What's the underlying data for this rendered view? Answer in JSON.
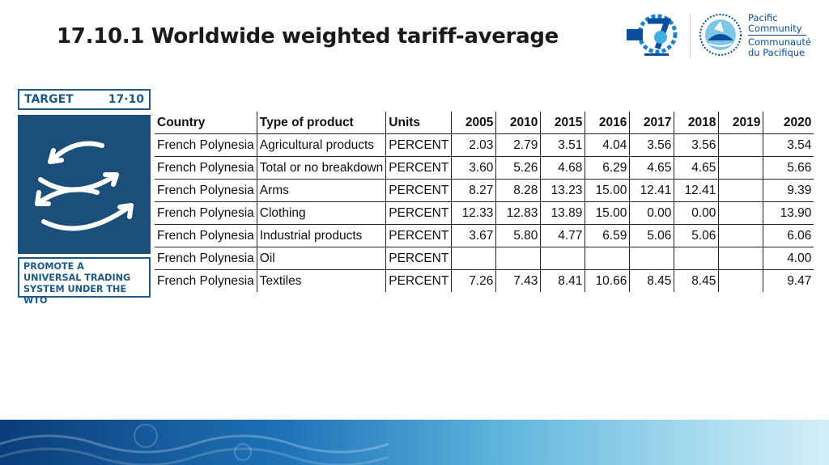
{
  "title": "17.10.1  Worldwide weighted tariff-average",
  "logo": {
    "line1": "Pacific",
    "line2": "Community",
    "line3": "Communauté",
    "line4": "du Pacifique"
  },
  "target": {
    "label": "TARGET",
    "number": "17·10",
    "description": "PROMOTE A UNIVERSAL TRADING SYSTEM UNDER THE WTO"
  },
  "table": {
    "headers": [
      "Country",
      "Type of product",
      "Units",
      "2005",
      "2010",
      "2015",
      "2016",
      "2017",
      "2018",
      "2019",
      "2020"
    ],
    "rows": [
      [
        "French Polynesia",
        "Agricultural products",
        "PERCENT",
        "2.03",
        "2.79",
        "3.51",
        "4.04",
        "3.56",
        "3.56",
        "",
        "3.54"
      ],
      [
        "French Polynesia",
        "Total or no breakdown",
        "PERCENT",
        "3.60",
        "5.26",
        "4.68",
        "6.29",
        "4.65",
        "4.65",
        "",
        "5.66"
      ],
      [
        "French Polynesia",
        "Arms",
        "PERCENT",
        "8.27",
        "8.28",
        "13.23",
        "15.00",
        "12.41",
        "12.41",
        "",
        "9.39"
      ],
      [
        "French Polynesia",
        "Clothing",
        "PERCENT",
        "12.33",
        "12.83",
        "13.89",
        "15.00",
        "0.00",
        "0.00",
        "",
        "13.90"
      ],
      [
        "French Polynesia",
        "Industrial products",
        "PERCENT",
        "3.67",
        "5.80",
        "4.77",
        "6.59",
        "5.06",
        "5.06",
        "",
        "6.06"
      ],
      [
        "French Polynesia",
        "Oil",
        "PERCENT",
        "",
        "",
        "",
        "",
        "",
        "",
        "",
        "4.00"
      ],
      [
        "French Polynesia",
        "Textiles",
        "PERCENT",
        "7.26",
        "7.43",
        "8.41",
        "10.66",
        "8.45",
        "8.45",
        "",
        "9.47"
      ]
    ]
  },
  "colors": {
    "sdg_blue": "#1b4f7a",
    "spc_blue": "#0a4f9c"
  }
}
